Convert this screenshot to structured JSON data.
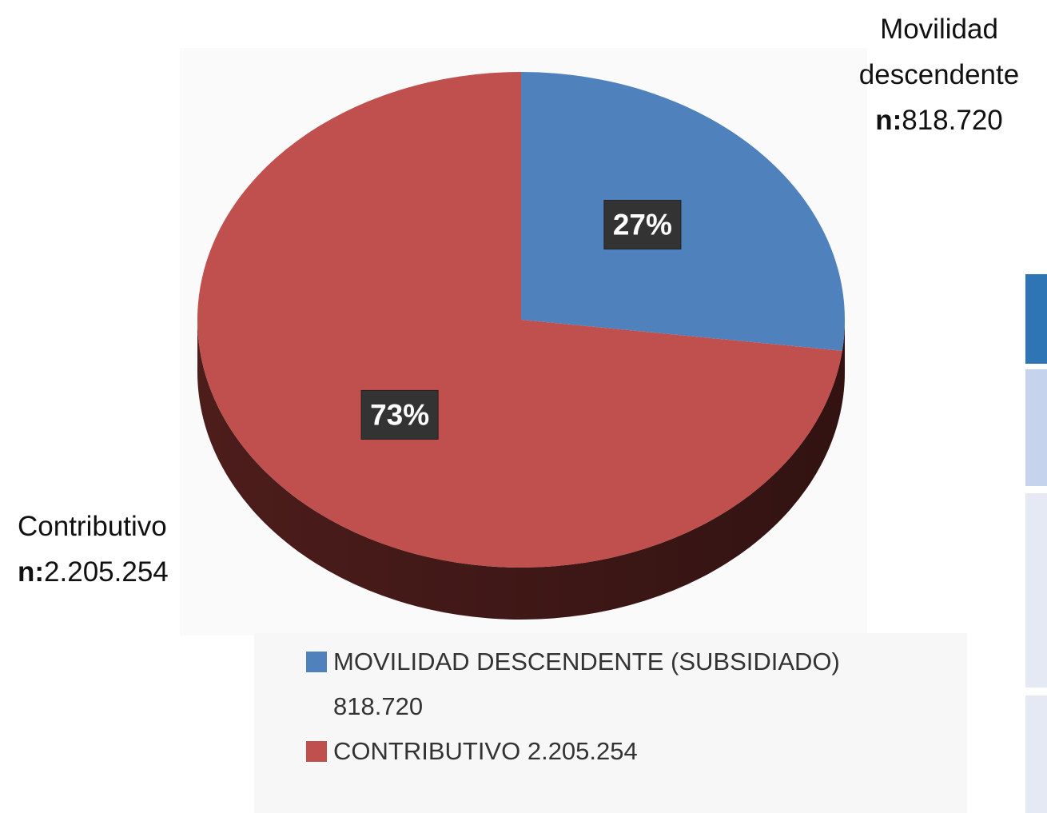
{
  "chart_data": {
    "type": "pie",
    "categories": [
      "MOVILIDAD DESCENDENTE (SUBSIDIADO) 818.720",
      "CONTRIBUTIVO 2.205.254"
    ],
    "values": [
      27,
      73
    ],
    "value_labels": [
      "27%",
      "73%"
    ],
    "colors": [
      "#4f81bd",
      "#c0504d"
    ],
    "side_colors": [
      "#2f4f78",
      "#5a2220"
    ],
    "annotations": [
      {
        "label": "Movilidad descendente",
        "prefix": "n:",
        "count": "818.720"
      },
      {
        "label": "Contributivo",
        "prefix": "n:",
        "count": "2.205.254"
      }
    ],
    "legend": "bottom"
  }
}
